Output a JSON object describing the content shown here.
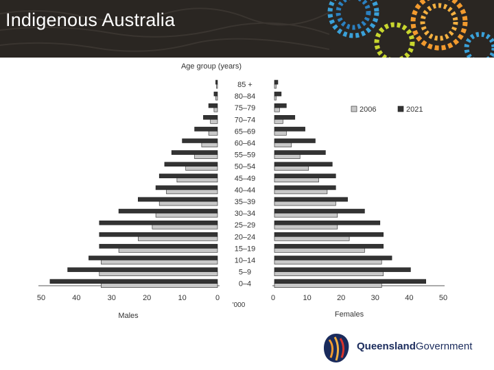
{
  "slide": {
    "title": "Indigenous Australia"
  },
  "logo": {
    "name_bold": "Queensland",
    "name_regular": "Government"
  },
  "colors": {
    "header_bg": "#2a2622",
    "series_2006": "#c8c8c8",
    "series_2021": "#333333"
  },
  "chart_data": {
    "type": "bar",
    "orientation": "horizontal-population-pyramid",
    "title": "Age group (years)",
    "unit_label": "'000",
    "left_label": "Males",
    "right_label": "Females",
    "categories": [
      "85 +",
      "80–84",
      "75–79",
      "70–74",
      "65–69",
      "60–64",
      "55–59",
      "50–54",
      "45–49",
      "40–44",
      "35–39",
      "30–34",
      "25–29",
      "20–24",
      "15–19",
      "10–14",
      "5–9",
      "0–4"
    ],
    "series": [
      {
        "name": "2006",
        "males": [
          0.3,
          0.5,
          1,
          2,
          2.5,
          4.5,
          6.5,
          9,
          11.5,
          14.5,
          16.5,
          17.5,
          18.5,
          22.5,
          28,
          33,
          33.5,
          33
        ],
        "females": [
          0.5,
          0.5,
          1.5,
          2.5,
          3.5,
          5,
          7.5,
          10,
          13,
          15.5,
          18,
          18.5,
          18.5,
          22,
          26.5,
          31.5,
          32,
          31.5
        ]
      },
      {
        "name": "2021",
        "males": [
          0.5,
          1,
          2.5,
          4,
          6.5,
          10,
          13,
          15,
          16.5,
          17.5,
          22.5,
          28,
          33.5,
          33.5,
          33.5,
          36.5,
          42.5,
          47.5
        ],
        "females": [
          1,
          2,
          3.5,
          6,
          9,
          12,
          15,
          17,
          18,
          18,
          21.5,
          26.5,
          31,
          32,
          32,
          34.5,
          40,
          44.5
        ]
      }
    ],
    "xlim": [
      0,
      50
    ],
    "ticks": [
      "50",
      "40",
      "30",
      "20",
      "10",
      "0",
      "0",
      "10",
      "20",
      "30",
      "40",
      "50"
    ],
    "legend": "top-right",
    "grid": false
  }
}
